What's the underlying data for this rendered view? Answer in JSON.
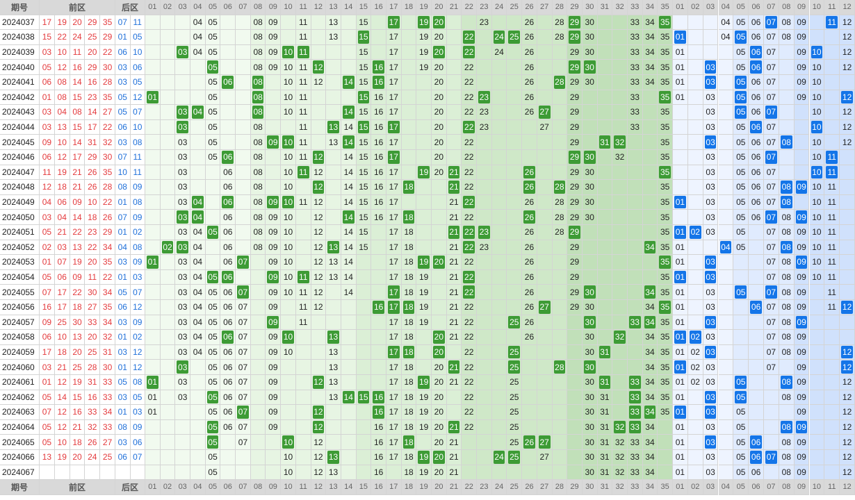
{
  "chart_data": {
    "type": "table",
    "header": {
      "issue": "期号",
      "front": "前区",
      "back": "后区"
    },
    "front_cols": [
      "01",
      "02",
      "03",
      "04",
      "05",
      "06",
      "07",
      "08",
      "09",
      "10",
      "11",
      "12",
      "13",
      "14",
      "15",
      "16",
      "17",
      "18",
      "19",
      "20",
      "21",
      "22",
      "23",
      "24",
      "25",
      "26",
      "27",
      "28",
      "29",
      "30",
      "31",
      "32",
      "33",
      "34",
      "35"
    ],
    "back_cols": [
      "01",
      "02",
      "03",
      "04",
      "05",
      "06",
      "07",
      "08",
      "09",
      "10",
      "11",
      "12"
    ],
    "colors": {
      "front_text": "#e4393c",
      "back_text": "#1e6fd9",
      "front_hit": "#3d9b35",
      "back_hit": "#1475e8"
    },
    "rows": [
      {
        "issue": "2024037",
        "front": [
          "17",
          "19",
          "20",
          "29",
          "35"
        ],
        "back": [
          "07",
          "11"
        ],
        "fs": [
          4,
          5,
          8,
          9,
          11,
          13,
          15,
          19,
          23,
          26,
          28,
          29,
          30,
          33,
          34
        ],
        "bs": [
          4,
          5,
          6,
          7,
          8,
          9,
          12
        ]
      },
      {
        "issue": "2024038",
        "front": [
          "15",
          "22",
          "24",
          "25",
          "29"
        ],
        "back": [
          "01",
          "05"
        ],
        "fs": [
          4,
          5,
          8,
          9,
          11,
          13,
          15,
          17,
          19,
          20,
          26,
          28,
          29,
          30,
          33,
          34,
          35
        ],
        "bs": [
          4,
          5,
          6,
          7,
          8,
          9,
          12
        ]
      },
      {
        "issue": "2024039",
        "front": [
          "03",
          "10",
          "11",
          "20",
          "22"
        ],
        "back": [
          "06",
          "10"
        ],
        "fs": [
          4,
          5,
          8,
          9,
          11,
          15,
          17,
          19,
          24,
          26,
          29,
          30,
          33,
          34,
          35
        ],
        "bs": [
          1,
          5,
          6,
          7,
          9,
          12
        ]
      },
      {
        "issue": "2024040",
        "front": [
          "05",
          "12",
          "16",
          "29",
          "30"
        ],
        "back": [
          "03",
          "06"
        ],
        "fs": [
          5,
          8,
          9,
          10,
          11,
          15,
          17,
          19,
          20,
          22,
          26,
          29,
          30,
          33,
          34,
          35
        ],
        "bs": [
          1,
          5,
          6,
          7,
          9,
          10,
          12
        ]
      },
      {
        "issue": "2024041",
        "front": [
          "06",
          "08",
          "14",
          "16",
          "28"
        ],
        "back": [
          "03",
          "05"
        ],
        "fs": [
          5,
          10,
          11,
          12,
          15,
          17,
          20,
          22,
          26,
          29,
          30,
          33,
          34,
          35
        ],
        "bs": [
          1,
          5,
          6,
          7,
          9,
          10
        ]
      },
      {
        "issue": "2024042",
        "front": [
          "01",
          "08",
          "15",
          "23",
          "35"
        ],
        "back": [
          "05",
          "12"
        ],
        "fs": [
          5,
          8,
          10,
          11,
          15,
          16,
          17,
          20,
          22,
          26,
          29,
          33,
          35
        ],
        "bs": [
          1,
          3,
          5,
          6,
          7,
          9,
          10
        ]
      },
      {
        "issue": "2024043",
        "front": [
          "03",
          "04",
          "08",
          "14",
          "27"
        ],
        "back": [
          "05",
          "07"
        ],
        "fs": [
          5,
          8,
          10,
          11,
          15,
          16,
          17,
          20,
          22,
          23,
          26,
          29,
          33,
          35
        ],
        "bs": [
          3,
          5,
          6,
          7,
          10,
          12
        ]
      },
      {
        "issue": "2024044",
        "front": [
          "03",
          "13",
          "15",
          "17",
          "22"
        ],
        "back": [
          "06",
          "10"
        ],
        "fs": [
          3,
          5,
          8,
          11,
          14,
          15,
          16,
          17,
          20,
          22,
          23,
          27,
          29,
          33,
          35
        ],
        "bs": [
          3,
          5,
          6,
          7,
          10,
          12
        ]
      },
      {
        "issue": "2024045",
        "front": [
          "09",
          "10",
          "14",
          "31",
          "32"
        ],
        "back": [
          "03",
          "08"
        ],
        "fs": [
          3,
          5,
          8,
          11,
          13,
          14,
          15,
          16,
          17,
          20,
          22,
          29,
          35
        ],
        "bs": [
          3,
          5,
          6,
          7,
          10,
          12
        ]
      },
      {
        "issue": "2024046",
        "front": [
          "06",
          "12",
          "17",
          "29",
          "30"
        ],
        "back": [
          "07",
          "11"
        ],
        "fs": [
          3,
          5,
          8,
          10,
          11,
          14,
          15,
          16,
          17,
          20,
          22,
          29,
          32,
          35
        ],
        "bs": [
          3,
          5,
          6,
          7,
          10
        ]
      },
      {
        "issue": "2024047",
        "front": [
          "11",
          "19",
          "21",
          "26",
          "35"
        ],
        "back": [
          "10",
          "11"
        ],
        "fs": [
          3,
          6,
          8,
          10,
          12,
          14,
          15,
          16,
          17,
          20,
          22,
          29,
          30,
          35
        ],
        "bs": [
          3,
          5,
          6,
          7,
          10,
          11
        ]
      },
      {
        "issue": "2024048",
        "front": [
          "12",
          "18",
          "21",
          "26",
          "28"
        ],
        "back": [
          "08",
          "09"
        ],
        "fs": [
          3,
          6,
          8,
          10,
          12,
          14,
          15,
          16,
          17,
          22,
          29,
          30,
          35
        ],
        "bs": [
          3,
          5,
          6,
          7,
          10,
          11
        ]
      },
      {
        "issue": "2024049",
        "front": [
          "04",
          "06",
          "09",
          "10",
          "22"
        ],
        "back": [
          "01",
          "08"
        ],
        "fs": [
          3,
          6,
          8,
          10,
          11,
          12,
          14,
          15,
          16,
          17,
          21,
          22,
          26,
          28,
          29,
          30,
          35
        ],
        "bs": [
          3,
          5,
          6,
          7,
          8,
          10,
          11
        ]
      },
      {
        "issue": "2024050",
        "front": [
          "03",
          "04",
          "14",
          "18",
          "26"
        ],
        "back": [
          "07",
          "09"
        ],
        "fs": [
          3,
          4,
          6,
          8,
          9,
          10,
          12,
          14,
          15,
          16,
          17,
          21,
          22,
          26,
          28,
          29,
          30,
          35
        ],
        "bs": [
          3,
          5,
          6,
          7,
          8,
          10,
          11
        ]
      },
      {
        "issue": "2024051",
        "front": [
          "05",
          "21",
          "22",
          "23",
          "29"
        ],
        "back": [
          "01",
          "02"
        ],
        "fs": [
          3,
          4,
          6,
          8,
          9,
          10,
          12,
          14,
          15,
          17,
          18,
          21,
          22,
          26,
          28,
          35
        ],
        "bs": [
          3,
          5,
          7,
          8,
          9,
          10,
          11
        ]
      },
      {
        "issue": "2024052",
        "front": [
          "02",
          "03",
          "13",
          "22",
          "34"
        ],
        "back": [
          "04",
          "08"
        ],
        "fs": [
          3,
          4,
          6,
          8,
          9,
          10,
          12,
          14,
          15,
          17,
          18,
          21,
          22,
          23,
          26,
          29,
          35
        ],
        "bs": [
          1,
          5,
          7,
          8,
          9,
          10,
          11
        ]
      },
      {
        "issue": "2024053",
        "front": [
          "01",
          "07",
          "19",
          "20",
          "35"
        ],
        "back": [
          "03",
          "09"
        ],
        "fs": [
          3,
          4,
          6,
          9,
          10,
          12,
          13,
          14,
          17,
          18,
          21,
          22,
          26,
          29
        ],
        "bs": [
          1,
          7,
          8,
          9,
          10,
          11
        ]
      },
      {
        "issue": "2024054",
        "front": [
          "05",
          "06",
          "09",
          "11",
          "22"
        ],
        "back": [
          "01",
          "03"
        ],
        "fs": [
          3,
          4,
          6,
          9,
          10,
          12,
          13,
          14,
          17,
          18,
          19,
          21,
          22,
          26,
          29,
          35
        ],
        "bs": [
          1,
          3,
          7,
          8,
          9,
          10,
          11
        ]
      },
      {
        "issue": "2024055",
        "front": [
          "07",
          "17",
          "22",
          "30",
          "34"
        ],
        "back": [
          "05",
          "07"
        ],
        "fs": [
          3,
          4,
          5,
          6,
          9,
          10,
          11,
          12,
          14,
          17,
          18,
          19,
          21,
          22,
          26,
          29,
          35
        ],
        "bs": [
          1,
          3,
          7,
          8,
          9,
          11
        ]
      },
      {
        "issue": "2024056",
        "front": [
          "16",
          "17",
          "18",
          "27",
          "35"
        ],
        "back": [
          "06",
          "12"
        ],
        "fs": [
          3,
          4,
          5,
          6,
          7,
          9,
          11,
          12,
          17,
          18,
          19,
          21,
          22,
          26,
          29,
          30,
          34,
          35
        ],
        "bs": [
          1,
          3,
          7,
          8,
          9,
          11
        ]
      },
      {
        "issue": "2024057",
        "front": [
          "09",
          "25",
          "30",
          "33",
          "34"
        ],
        "back": [
          "03",
          "09"
        ],
        "fs": [
          3,
          4,
          5,
          6,
          7,
          9,
          11,
          17,
          18,
          19,
          21,
          22,
          26,
          34,
          35
        ],
        "bs": [
          1,
          3,
          7,
          8,
          9
        ]
      },
      {
        "issue": "2024058",
        "front": [
          "06",
          "10",
          "13",
          "20",
          "32"
        ],
        "back": [
          "01",
          "02"
        ],
        "fs": [
          3,
          4,
          5,
          6,
          7,
          9,
          17,
          18,
          21,
          22,
          26,
          30,
          34,
          35
        ],
        "bs": [
          1,
          3,
          7,
          8,
          9
        ]
      },
      {
        "issue": "2024059",
        "front": [
          "17",
          "18",
          "20",
          "25",
          "31"
        ],
        "back": [
          "03",
          "12"
        ],
        "fs": [
          3,
          4,
          5,
          6,
          7,
          9,
          10,
          13,
          17,
          18,
          20,
          22,
          30,
          34,
          35
        ],
        "bs": [
          1,
          2,
          3,
          7,
          8,
          9
        ]
      },
      {
        "issue": "2024060",
        "front": [
          "03",
          "21",
          "25",
          "28",
          "30"
        ],
        "back": [
          "01",
          "12"
        ],
        "fs": [
          3,
          5,
          6,
          7,
          9,
          13,
          17,
          18,
          20,
          22,
          25,
          30,
          34,
          35
        ],
        "bs": [
          1,
          2,
          3,
          7,
          9,
          12
        ]
      },
      {
        "issue": "2024061",
        "front": [
          "01",
          "12",
          "19",
          "31",
          "33"
        ],
        "back": [
          "05",
          "08"
        ],
        "fs": [
          3,
          5,
          6,
          7,
          9,
          13,
          17,
          18,
          20,
          21,
          22,
          25,
          30,
          34,
          35
        ],
        "bs": [
          1,
          2,
          3,
          9,
          12
        ]
      },
      {
        "issue": "2024062",
        "front": [
          "05",
          "14",
          "15",
          "16",
          "33"
        ],
        "back": [
          "03",
          "05"
        ],
        "fs": [
          1,
          3,
          6,
          7,
          9,
          13,
          17,
          18,
          19,
          20,
          22,
          25,
          30,
          31,
          33,
          34,
          35
        ],
        "bs": [
          1,
          3,
          5,
          8,
          9,
          12
        ]
      },
      {
        "issue": "2024063",
        "front": [
          "07",
          "12",
          "16",
          "33",
          "34"
        ],
        "back": [
          "01",
          "03"
        ],
        "fs": [
          1,
          5,
          6,
          7,
          9,
          16,
          17,
          18,
          19,
          20,
          22,
          25,
          30,
          31,
          33,
          34,
          35
        ],
        "bs": [
          1,
          3,
          5,
          9,
          12
        ]
      },
      {
        "issue": "2024064",
        "front": [
          "05",
          "12",
          "21",
          "32",
          "33"
        ],
        "back": [
          "08",
          "09"
        ],
        "fs": [
          5,
          6,
          7,
          9,
          12,
          16,
          17,
          18,
          19,
          20,
          22,
          25,
          30,
          31,
          33,
          34
        ],
        "bs": [
          1,
          3,
          5,
          9,
          12
        ]
      },
      {
        "issue": "2024065",
        "front": [
          "05",
          "10",
          "18",
          "26",
          "27"
        ],
        "back": [
          "03",
          "06"
        ],
        "fs": [
          5,
          7,
          12,
          16,
          17,
          18,
          20,
          21,
          25,
          30,
          31,
          32,
          33,
          34
        ],
        "bs": [
          1,
          3,
          5,
          8,
          9,
          12
        ]
      },
      {
        "issue": "2024066",
        "front": [
          "13",
          "19",
          "20",
          "24",
          "25"
        ],
        "back": [
          "06",
          "07"
        ],
        "fs": [
          5,
          10,
          12,
          16,
          17,
          18,
          20,
          21,
          25,
          27,
          30,
          31,
          32,
          33,
          34
        ],
        "bs": [
          1,
          3,
          5,
          6,
          8,
          9,
          12
        ]
      },
      {
        "issue": "2024067",
        "front": [],
        "back": [],
        "fs": [
          5,
          10,
          12,
          13,
          16,
          18,
          19,
          20,
          21,
          30,
          31,
          32,
          33,
          34
        ],
        "bs": [
          1,
          3,
          5,
          6,
          8,
          9,
          12
        ]
      }
    ]
  }
}
